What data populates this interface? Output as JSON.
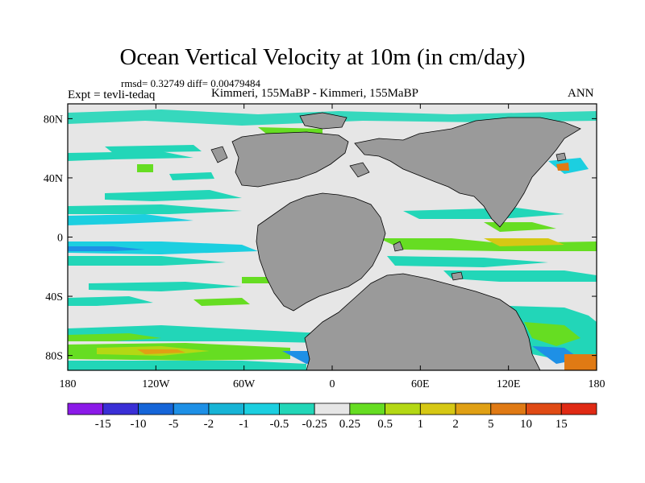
{
  "title": "Ocean Vertical Velocity at 10m (in cm/day)",
  "stats": "rmsd= 0.32749 diff= 0.00479484",
  "experiment": "Expt = tevli-tedaq",
  "comparison": "Kimmeri, 155MaBP - Kimmeri, 155MaBP",
  "season": "ANN",
  "lat_labels": [
    "80N",
    "40N",
    "0",
    "40S",
    "80S"
  ],
  "lat_values": [
    80,
    40,
    0,
    -40,
    -80
  ],
  "lon_labels": [
    "180",
    "120W",
    "60W",
    "0",
    "60E",
    "120E",
    "180"
  ],
  "lon_values": [
    -180,
    -120,
    -60,
    0,
    60,
    120,
    180
  ],
  "colorbar": {
    "levels": [
      "-15",
      "-10",
      "-5",
      "-2",
      "-1",
      "-0.5",
      "-0.25",
      "0.25",
      "0.5",
      "1",
      "2",
      "5",
      "10",
      "15"
    ],
    "colors": [
      "#8b1ae8",
      "#3a2fd6",
      "#1565d8",
      "#1e90e6",
      "#17b4d6",
      "#1ccfe0",
      "#22d6b8",
      "#e6e6e6",
      "#66dd22",
      "#b4d814",
      "#d6c814",
      "#e0a014",
      "#e07a14",
      "#e04a14",
      "#e02a14"
    ]
  },
  "colors": {
    "land": "#9a9a9a",
    "ocean_neutral": "#e6e6e6"
  }
}
